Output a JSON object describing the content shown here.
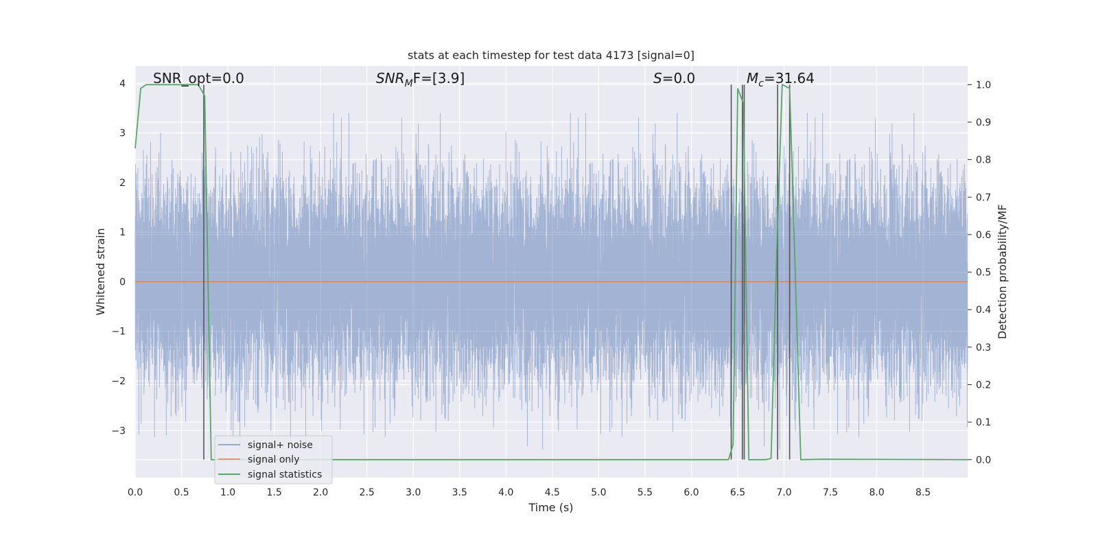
{
  "chart_data": {
    "type": "line",
    "title": "stats at each timestep for test data 4173 [signal=0]",
    "xlabel": "Time (s)",
    "ylabel": "Whitened strain",
    "y2label": "Detection probability/MF",
    "xlim": [
      0.0,
      8.98
    ],
    "ylim": [
      -3.95,
      4.35
    ],
    "y2lim": [
      -0.048,
      1.05
    ],
    "x_ticks": [
      "0.0",
      "0.5",
      "1.0",
      "1.5",
      "2.0",
      "2.5",
      "3.0",
      "3.5",
      "4.0",
      "4.5",
      "5.0",
      "5.5",
      "6.0",
      "6.5",
      "7.0",
      "7.5",
      "8.0",
      "8.5"
    ],
    "y_ticks": [
      "4",
      "3",
      "2",
      "1",
      "0",
      "−1",
      "−2",
      "−3"
    ],
    "y2_ticks": [
      "1.0",
      "0.9",
      "0.8",
      "0.7",
      "0.6",
      "0.5",
      "0.4",
      "0.3",
      "0.2",
      "0.1",
      "0.0"
    ],
    "grid": true,
    "legend_position": "lower-left",
    "annotations": {
      "snr_opt": "SNR_opt=0.0",
      "snr_mf_main": "SNR",
      "snr_mf_sub": "M",
      "snr_mf_rest": "F=[3.9]",
      "s_main": "S",
      "s_rest": "=0.0",
      "mc_main": "M",
      "mc_sub": "c",
      "mc_rest": "=31.64"
    },
    "series": [
      {
        "name": "signal+ noise",
        "color": "#4c72b0",
        "description_of_values": "whitened noise, roughly N(0,1), peaks near ±3.4",
        "sample_rate_hz": 2048,
        "duration_s": 8.98
      },
      {
        "name": "signal only",
        "color": "#dd8452",
        "x": [
          0.0,
          8.98
        ],
        "y": [
          0.0,
          0.0
        ]
      },
      {
        "name": "signal statistics",
        "color": "#55a868",
        "axis": "right",
        "x": [
          0.0,
          0.06,
          0.12,
          0.2,
          0.4,
          0.6,
          0.68,
          0.75,
          0.82,
          6.0,
          6.4,
          6.45,
          6.5,
          6.56,
          6.62,
          6.8,
          6.86,
          6.92,
          6.98,
          7.06,
          7.12,
          7.18,
          7.4,
          8.98
        ],
        "y": [
          0.83,
          0.99,
          1.0,
          1.0,
          1.0,
          1.0,
          1.0,
          0.97,
          0.0,
          0.0,
          0.0,
          0.04,
          0.99,
          0.95,
          0.0,
          0.0,
          0.003,
          0.55,
          1.0,
          0.99,
          0.5,
          0.0,
          0.001,
          0.0
        ]
      }
    ],
    "vertical_markers": {
      "color": "#555555",
      "x": [
        0.74,
        6.43,
        6.55,
        6.57,
        6.93,
        7.06
      ],
      "y2_range": [
        0.0,
        1.0
      ]
    }
  }
}
